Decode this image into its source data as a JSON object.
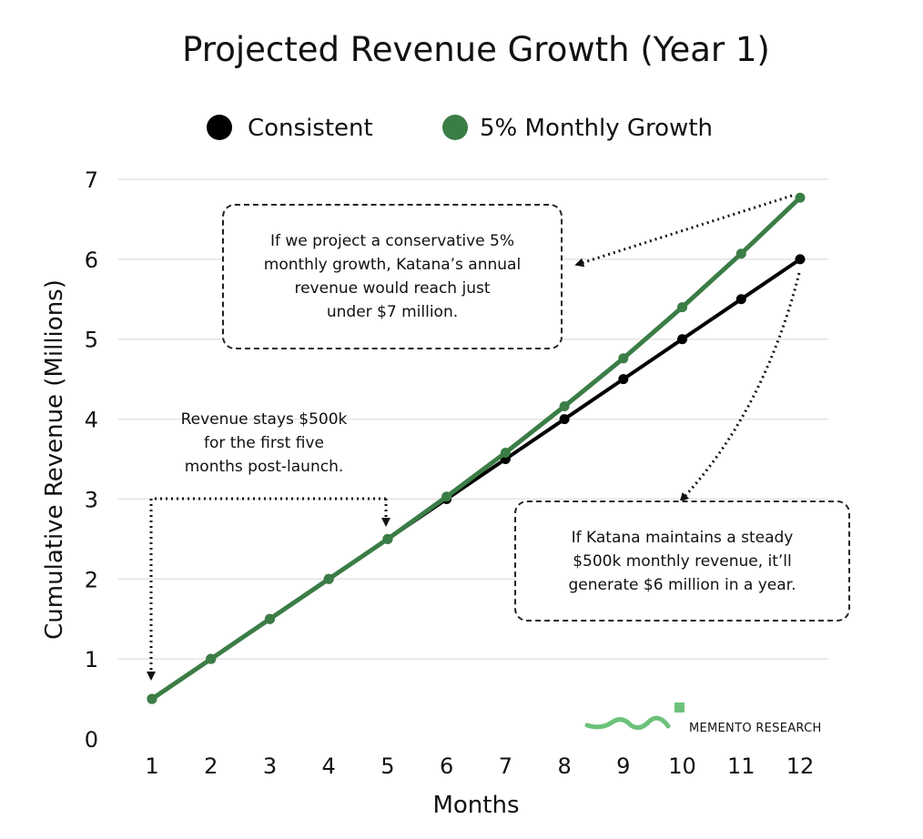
{
  "chart_data": {
    "type": "line",
    "title": "Projected Revenue Growth (Year 1)",
    "xlabel": "Months",
    "ylabel": "Cumulative Revenue (Millions)",
    "x": [
      1,
      2,
      3,
      4,
      5,
      6,
      7,
      8,
      9,
      10,
      11,
      12
    ],
    "xticks": [
      "1",
      "2",
      "3",
      "4",
      "5",
      "6",
      "7",
      "8",
      "9",
      "10",
      "11",
      "12"
    ],
    "yticks": [
      "0",
      "1",
      "2",
      "3",
      "4",
      "5",
      "6",
      "7"
    ],
    "ylim": [
      0,
      7
    ],
    "grid": "horizontal",
    "legend_position": "top-center",
    "series": [
      {
        "name": "Consistent",
        "color": "#000000",
        "values": [
          0.5,
          1.0,
          1.5,
          2.0,
          2.5,
          3.0,
          3.5,
          4.0,
          4.5,
          5.0,
          5.5,
          6.0
        ]
      },
      {
        "name": "5% Monthly Growth",
        "color": "#3b7d46",
        "values": [
          0.5,
          1.0,
          1.5,
          2.0,
          2.5,
          3.03,
          3.58,
          4.16,
          4.76,
          5.4,
          6.07,
          6.77
        ]
      }
    ],
    "annotations": [
      {
        "id": "growth-note",
        "text": "If we project a conservative 5% monthly growth, Katana’s annual revenue would reach just under $7 million.",
        "boxed": true
      },
      {
        "id": "steady-note",
        "text": "If Katana maintains a steady $500k monthly revenue, it’ll generate $6 million in a year.",
        "boxed": true
      },
      {
        "id": "flat-note",
        "text": "Revenue stays $500k for the first five months post-launch.",
        "boxed": false
      }
    ]
  },
  "notes": {
    "growth_lines": [
      "If we project a conservative 5%",
      "monthly growth, Katana’s annual",
      "revenue would reach just",
      "under $7 million."
    ],
    "steady_lines": [
      "If Katana maintains a steady",
      "$500k monthly revenue, it’ll",
      "generate $6 million in a year."
    ],
    "flat_lines": [
      "Revenue stays $500k",
      "for the first five",
      "months post-launch."
    ]
  },
  "branding": {
    "logo_text": "MEMENTO RESEARCH",
    "logo_color": "#6cc27a"
  }
}
